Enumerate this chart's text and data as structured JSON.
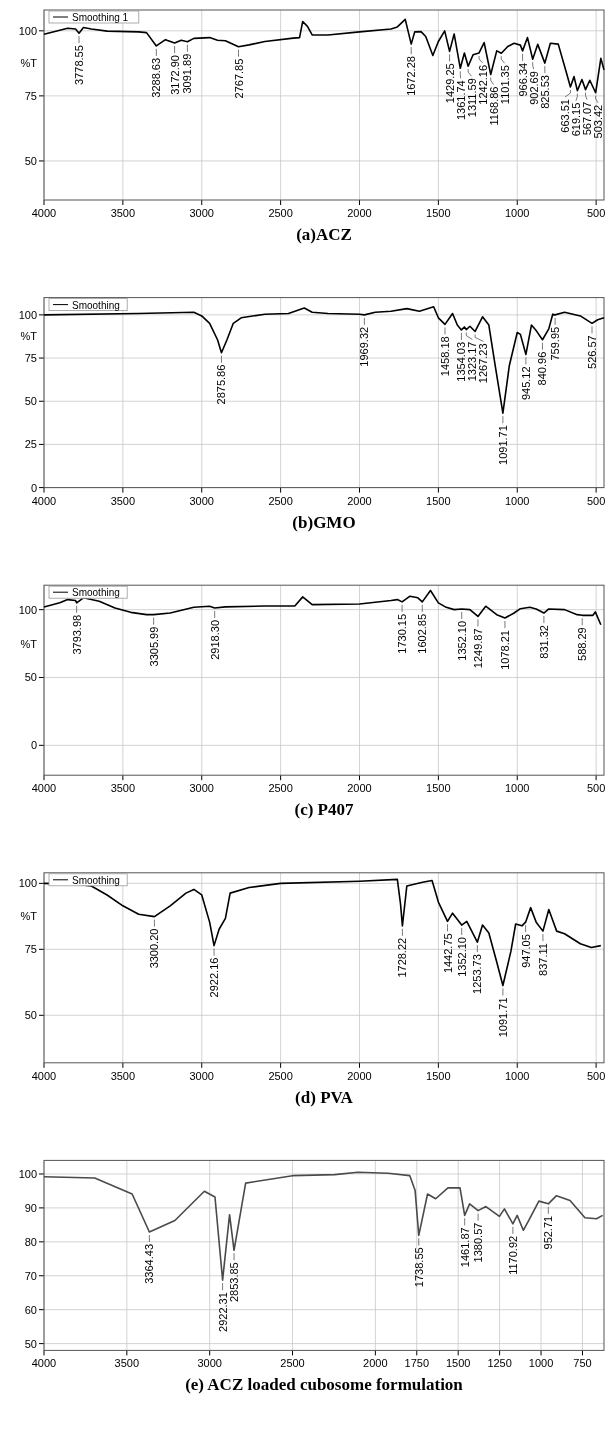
{
  "chart_data": [
    {
      "type": "line",
      "title": "(a)ACZ",
      "ylabel": "%T",
      "grid": true,
      "legend": "top left",
      "xlim": [
        4000,
        450
      ],
      "xticks": [
        4000,
        3500,
        3000,
        2500,
        2000,
        1500,
        1000,
        500
      ],
      "ylim": [
        35,
        108
      ],
      "yticks": [
        100,
        75,
        50
      ],
      "x": [
        4000,
        3850,
        3800,
        3778,
        3750,
        3700,
        3600,
        3400,
        3350,
        3288,
        3230,
        3172,
        3130,
        3091,
        3050,
        2950,
        2900,
        2850,
        2767,
        2700,
        2600,
        2420,
        2380,
        2360,
        2330,
        2300,
        2200,
        2000,
        1800,
        1760,
        1710,
        1672,
        1650,
        1610,
        1580,
        1535,
        1500,
        1460,
        1429,
        1400,
        1361,
        1335,
        1311,
        1280,
        1242,
        1210,
        1168,
        1130,
        1101,
        1060,
        1020,
        980,
        966,
        935,
        902,
        870,
        825,
        790,
        740,
        690,
        663,
        640,
        619,
        590,
        567,
        540,
        503,
        470,
        450
      ],
      "series": [
        {
          "name": "Smoothing 1",
          "color": "#000000",
          "values": [
            98.7,
            101,
            100.7,
            99.1,
            101.3,
            100.7,
            99.9,
            99.6,
            99.3,
            94.2,
            96.6,
            95.3,
            96.4,
            95.8,
            97.1,
            97.4,
            96.4,
            96.2,
            93.9,
            94.6,
            95.9,
            97.2,
            97.4,
            103.6,
            101.7,
            98.4,
            98.4,
            99.6,
            100.7,
            101.5,
            104.4,
            94.9,
            99.6,
            99.7,
            97.8,
            90.5,
            95.9,
            100,
            92.1,
            98.8,
            85.6,
            91.5,
            86.4,
            90.8,
            91.5,
            95.5,
            83.2,
            92.3,
            91.4,
            94,
            95.2,
            94.5,
            92.3,
            97.4,
            89.1,
            94.8,
            87.6,
            95.2,
            94.9,
            84.3,
            78.4,
            82.4,
            77,
            81.3,
            77.4,
            81,
            76.2,
            89.4,
            85
          ]
        }
      ],
      "annotations": [
        {
          "text": "3778.55",
          "x": 3778,
          "y": 99.1
        },
        {
          "text": "3288.63",
          "x": 3288,
          "y": 94.2
        },
        {
          "text": "3172.90",
          "x": 3172,
          "y": 95.3
        },
        {
          "text": "3091.89",
          "x": 3091,
          "y": 95.8
        },
        {
          "text": "2767.85",
          "x": 2767,
          "y": 93.9
        },
        {
          "text": "1672.28",
          "x": 1672,
          "y": 94.9
        },
        {
          "text": "1429.25",
          "x": 1429,
          "y": 92.1
        },
        {
          "text": "1361.74",
          "x": 1361,
          "y": 85.6
        },
        {
          "text": "1311.59",
          "x": 1311,
          "y": 86.4
        },
        {
          "text": "1242.16",
          "x": 1242,
          "y": 91.5
        },
        {
          "text": "1168.86",
          "x": 1168,
          "y": 83.2
        },
        {
          "text": "1101.35",
          "x": 1101,
          "y": 91.4
        },
        {
          "text": "966.34",
          "x": 966,
          "y": 92.3
        },
        {
          "text": "902.69",
          "x": 902,
          "y": 89.1
        },
        {
          "text": "825.53",
          "x": 825,
          "y": 87.6
        },
        {
          "text": "663.51",
          "x": 663,
          "y": 78.4
        },
        {
          "text": "619.15",
          "x": 619,
          "y": 77
        },
        {
          "text": "567.07",
          "x": 567,
          "y": 77.4
        },
        {
          "text": "503.42",
          "x": 503,
          "y": 76.2
        }
      ]
    },
    {
      "type": "line",
      "title": "(b)GMO",
      "ylabel": "%T",
      "grid": true,
      "legend": "top left",
      "xlim": [
        4000,
        450
      ],
      "xticks": [
        4000,
        3500,
        3000,
        2500,
        2000,
        1500,
        1000,
        500
      ],
      "ylim": [
        0,
        110
      ],
      "yticks": [
        100,
        75,
        50,
        25,
        0
      ],
      "x": [
        4000,
        3400,
        3050,
        3000,
        2950,
        2900,
        2875,
        2840,
        2800,
        2750,
        2600,
        2450,
        2350,
        2300,
        2200,
        2000,
        1969,
        1900,
        1800,
        1700,
        1620,
        1530,
        1500,
        1458,
        1410,
        1380,
        1354,
        1335,
        1323,
        1300,
        1267,
        1220,
        1180,
        1140,
        1091,
        1050,
        1000,
        980,
        945,
        910,
        880,
        840,
        800,
        775,
        760,
        700,
        600,
        526,
        490,
        450
      ],
      "series": [
        {
          "name": "Smoothing",
          "color": "#000000",
          "values": [
            100,
            100.8,
            101.5,
            99.4,
            95.1,
            85.6,
            78.1,
            85.6,
            95.1,
            98.3,
            100.4,
            100.8,
            104,
            101.5,
            100.8,
            100.4,
            100,
            101.5,
            102.1,
            103.6,
            102.1,
            104.7,
            98.3,
            94.5,
            100.8,
            94.1,
            91.3,
            93,
            91.5,
            93.4,
            90.4,
            98.9,
            94.1,
            70.7,
            43.1,
            70.7,
            89.8,
            88.7,
            77.1,
            94.1,
            90.9,
            85.6,
            91.9,
            100.4,
            100,
            101.5,
            99.4,
            95.1,
            97.2,
            98.3
          ]
        }
      ],
      "annotations": [
        {
          "text": "2875.86",
          "x": 2875,
          "y": 78.1
        },
        {
          "text": "1969.32",
          "x": 1969,
          "y": 100
        },
        {
          "text": "1458.18",
          "x": 1458,
          "y": 94.5
        },
        {
          "text": "1354.03",
          "x": 1354,
          "y": 91.3
        },
        {
          "text": "1323.17",
          "x": 1323,
          "y": 91.5
        },
        {
          "text": "1267.23",
          "x": 1267,
          "y": 90.4
        },
        {
          "text": "1091.71",
          "x": 1091,
          "y": 43.1
        },
        {
          "text": "945.12",
          "x": 945,
          "y": 77.1
        },
        {
          "text": "840.96",
          "x": 840,
          "y": 85.6
        },
        {
          "text": "759.95",
          "x": 760,
          "y": 100
        },
        {
          "text": "526.57",
          "x": 526,
          "y": 95.1
        }
      ]
    },
    {
      "type": "line",
      "title": "(c) P407",
      "ylabel": "%T",
      "grid": true,
      "legend": "top left",
      "xlim": [
        4000,
        450
      ],
      "xticks": [
        4000,
        3500,
        3000,
        2500,
        2000,
        1500,
        1000,
        500
      ],
      "ylim": [
        -22,
        118
      ],
      "yticks": [
        100,
        50,
        0
      ],
      "x": [
        4000,
        3900,
        3850,
        3800,
        3793,
        3750,
        3650,
        3550,
        3450,
        3350,
        3305,
        3200,
        3050,
        2950,
        2918,
        2850,
        2600,
        2410,
        2360,
        2300,
        2000,
        1800,
        1760,
        1730,
        1680,
        1630,
        1602,
        1550,
        1500,
        1450,
        1400,
        1352,
        1300,
        1249,
        1200,
        1130,
        1078,
        1020,
        980,
        920,
        880,
        831,
        800,
        700,
        620,
        588,
        520,
        505,
        470
      ],
      "series": [
        {
          "name": "Smoothing",
          "color": "#000000",
          "values": [
            102,
            105,
            107.4,
            106.7,
            105,
            108.7,
            106.2,
            101.2,
            98,
            96.3,
            96.3,
            97.5,
            101.7,
            102.5,
            101.2,
            102,
            102.7,
            102.7,
            109.4,
            103.7,
            104.2,
            106.7,
            107.4,
            105.7,
            109.9,
            108.7,
            105.7,
            114.1,
            105,
            101.7,
            100,
            100.5,
            100,
            95,
            102.5,
            96.3,
            93.8,
            97.5,
            100.7,
            101.7,
            100.5,
            97.5,
            100.5,
            100,
            96.3,
            95.8,
            95.8,
            98.3,
            88.9
          ]
        }
      ],
      "annotations": [
        {
          "text": "3793.98",
          "x": 3793,
          "y": 105
        },
        {
          "text": "3305.99",
          "x": 3305,
          "y": 96.3
        },
        {
          "text": "2918.30",
          "x": 2918,
          "y": 101.2
        },
        {
          "text": "1730.15",
          "x": 1730,
          "y": 105.7
        },
        {
          "text": "1602.85",
          "x": 1602,
          "y": 105.7
        },
        {
          "text": "1352.10",
          "x": 1352,
          "y": 100.5
        },
        {
          "text": "1249.87",
          "x": 1249,
          "y": 95
        },
        {
          "text": "1078.21",
          "x": 1078,
          "y": 93.8
        },
        {
          "text": "831.32",
          "x": 831,
          "y": 97.5
        },
        {
          "text": "588.29",
          "x": 588,
          "y": 95.8
        }
      ]
    },
    {
      "type": "line",
      "title": "(d) PVA",
      "ylabel": "%T",
      "grid": true,
      "legend": "top left",
      "xlim": [
        4000,
        450
      ],
      "xticks": [
        4000,
        3500,
        3000,
        2500,
        2000,
        1500,
        1000,
        500
      ],
      "ylim": [
        32,
        104
      ],
      "yticks": [
        100,
        75,
        50
      ],
      "x": [
        4000,
        3800,
        3700,
        3600,
        3500,
        3400,
        3300,
        3200,
        3100,
        3050,
        3000,
        2950,
        2922,
        2890,
        2850,
        2820,
        2700,
        2500,
        2000,
        1760,
        1740,
        1728,
        1700,
        1600,
        1540,
        1500,
        1442,
        1410,
        1352,
        1320,
        1253,
        1220,
        1180,
        1130,
        1091,
        1040,
        1010,
        970,
        947,
        915,
        880,
        837,
        800,
        750,
        700,
        600,
        530,
        470
      ],
      "series": [
        {
          "name": "Smoothing",
          "color": "#000000",
          "values": [
            100,
            99.7,
            99,
            95.6,
            91.5,
            88.3,
            87.4,
            91.5,
            96.3,
            97.7,
            95.6,
            85.3,
            76.4,
            82.6,
            86.7,
            96.3,
            98.4,
            100,
            100.8,
            101.5,
            92.2,
            83.9,
            99,
            100.4,
            101.1,
            92.9,
            85.6,
            88.7,
            84.2,
            85.6,
            77.7,
            84.2,
            81.2,
            70.2,
            61.3,
            74.3,
            84.6,
            83.9,
            85.3,
            90.8,
            85.3,
            81.9,
            90.1,
            81.9,
            80.9,
            77.1,
            75.7,
            76.4
          ]
        }
      ],
      "annotations": [
        {
          "text": "3300.20",
          "x": 3300,
          "y": 87.4
        },
        {
          "text": "2922.16",
          "x": 2922,
          "y": 76.4
        },
        {
          "text": "1728.22",
          "x": 1728,
          "y": 83.9
        },
        {
          "text": "1442.75",
          "x": 1442,
          "y": 85.6
        },
        {
          "text": "1352.10",
          "x": 1352,
          "y": 84.2
        },
        {
          "text": "1253.73",
          "x": 1253,
          "y": 77.7
        },
        {
          "text": "1091.71",
          "x": 1091,
          "y": 61.3
        },
        {
          "text": "947.05",
          "x": 947,
          "y": 85.3
        },
        {
          "text": "837.11",
          "x": 837,
          "y": 81.9
        }
      ]
    },
    {
      "type": "line",
      "title": "(e) ACZ loaded cubosome formulation",
      "grid": true,
      "xlim": [
        4000,
        620
      ],
      "xticks": [
        4000,
        3500,
        3000,
        2500,
        2000,
        1750,
        1500,
        1250,
        1000,
        750
      ],
      "ylim": [
        48,
        104
      ],
      "yticks": [
        100,
        90,
        80,
        70,
        60,
        50
      ],
      "x": [
        4000,
        3694,
        3468,
        3364,
        3210,
        3032,
        2968,
        2922,
        2880,
        2853,
        2783,
        2500,
        2245,
        2106,
        1923,
        1792,
        1760,
        1738,
        1685,
        1636,
        1562,
        1489,
        1461,
        1431,
        1380,
        1333,
        1251,
        1221,
        1170,
        1144,
        1107,
        1074,
        1013,
        956,
        907,
        825,
        735,
        665,
        628
      ],
      "series": [
        {
          "color": "#4a4a4a",
          "values": [
            99.2,
            98.8,
            94.1,
            82.9,
            86.3,
            94.9,
            93.2,
            68.7,
            88,
            77.5,
            97.3,
            99.5,
            99.8,
            100.5,
            100.2,
            99.5,
            95.1,
            81.9,
            94.1,
            92.7,
            95.9,
            95.9,
            87.8,
            91.2,
            89.2,
            90.4,
            87.5,
            89.7,
            85.3,
            87.8,
            83.4,
            86.3,
            92,
            91.2,
            93.6,
            92.2,
            87.1,
            86.8,
            87.8
          ]
        }
      ],
      "annotations": [
        {
          "text": "3364.43",
          "x": 3364,
          "y": 82.9
        },
        {
          "text": "2922.31",
          "x": 2922,
          "y": 68.7
        },
        {
          "text": "2853.85",
          "x": 2853,
          "y": 77.5
        },
        {
          "text": "1738.55",
          "x": 1738,
          "y": 81.9
        },
        {
          "text": "1461.87",
          "x": 1461,
          "y": 87.8
        },
        {
          "text": "1380.57",
          "x": 1380,
          "y": 89.2
        },
        {
          "text": "1170.92",
          "x": 1170,
          "y": 85.3
        },
        {
          "text": "952.71",
          "x": 956,
          "y": 91.2
        }
      ]
    }
  ]
}
